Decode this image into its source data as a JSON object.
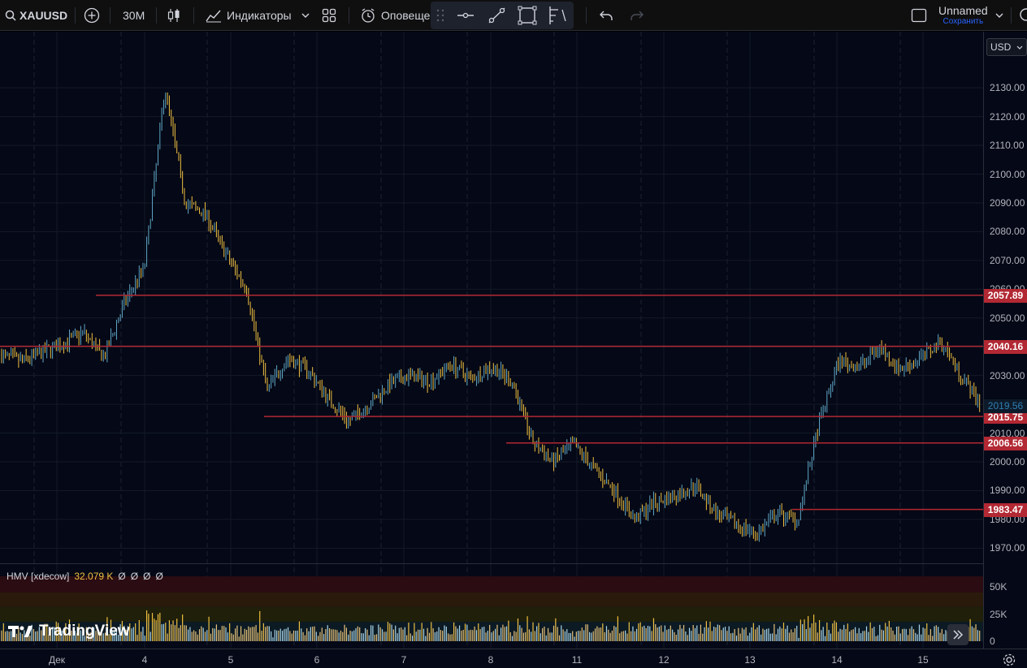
{
  "toolbar": {
    "symbol": "XAUUSD",
    "interval": "30M",
    "indicators_label": "Индикаторы",
    "alerts_label": "Оповещен",
    "layout_name": "Unnamed",
    "save_label": "Сохранить"
  },
  "currency_select": "USD",
  "indicator_legend": {
    "name": "HMV [xdecow]",
    "value": "32.079 K",
    "extra": [
      "Ø",
      "Ø",
      "Ø",
      "Ø"
    ]
  },
  "branding": "TradingView",
  "colors": {
    "background": "#050816",
    "level_line": "#b22833",
    "up_candle": "#5fa8c7",
    "down_candle": "#f0c040",
    "spike_volume": "#e03a3a",
    "current_price": "#2f7fb0"
  },
  "chart_data": {
    "type": "candlestick",
    "symbol": "XAUUSD",
    "interval": "30M",
    "price_axis": {
      "ylim": [
        1965,
        2140
      ],
      "ticks": [
        1970,
        1980,
        1990,
        2000,
        2010,
        2020,
        2030,
        2040,
        2050,
        2060,
        2070,
        2080,
        2090,
        2100,
        2110,
        2120,
        2130
      ],
      "tick_labels": [
        "1970.00",
        "1980.00",
        "1990.00",
        "2000.00",
        "2010.00",
        "2020.00",
        "2030.00",
        "2040.00",
        "2050.00",
        "2060.00",
        "2070.00",
        "2080.00",
        "2090.00",
        "2100.00",
        "2110.00",
        "2120.00",
        "2130.00"
      ]
    },
    "time_axis": {
      "labels": [
        "Дек",
        "4",
        "5",
        "6",
        "7",
        "8",
        "11",
        "12",
        "13",
        "14",
        "15"
      ]
    },
    "horizontal_levels": [
      {
        "price": 2057.89,
        "label": "2057.89"
      },
      {
        "price": 2040.16,
        "label": "2040.16"
      },
      {
        "price": 2015.75,
        "label": "2015.75"
      },
      {
        "price": 2006.56,
        "label": "2006.56"
      },
      {
        "price": 1983.47,
        "label": "1983.47"
      }
    ],
    "last_price": {
      "price": 2019.56,
      "label": "2019.56"
    },
    "price_path": [
      {
        "day": "Дек",
        "close": 2037
      },
      {
        "day": "Дек",
        "close": 2035
      },
      {
        "day": "Дек",
        "close": 2038
      },
      {
        "day": "Дек",
        "close": 2041
      },
      {
        "day": "Дек",
        "close": 2045
      },
      {
        "day": "Дек",
        "close": 2036
      },
      {
        "day": "Дек",
        "close": 2055
      },
      {
        "day": "4",
        "close": 2068
      },
      {
        "day": "4",
        "close": 2130
      },
      {
        "day": "4",
        "close": 2090
      },
      {
        "day": "4",
        "close": 2086
      },
      {
        "day": "4",
        "close": 2072
      },
      {
        "day": "4",
        "close": 2060
      },
      {
        "day": "4",
        "close": 2025
      },
      {
        "day": "5",
        "close": 2036
      },
      {
        "day": "5",
        "close": 2032
      },
      {
        "day": "5",
        "close": 2022
      },
      {
        "day": "5",
        "close": 2014
      },
      {
        "day": "6",
        "close": 2020
      },
      {
        "day": "6",
        "close": 2027
      },
      {
        "day": "6",
        "close": 2030
      },
      {
        "day": "7",
        "close": 2028
      },
      {
        "day": "7",
        "close": 2034
      },
      {
        "day": "7",
        "close": 2029
      },
      {
        "day": "8",
        "close": 2033
      },
      {
        "day": "8",
        "close": 2028
      },
      {
        "day": "8",
        "close": 2007
      },
      {
        "day": "11",
        "close": 2000
      },
      {
        "day": "11",
        "close": 2006
      },
      {
        "day": "11",
        "close": 1998
      },
      {
        "day": "11",
        "close": 1990
      },
      {
        "day": "12",
        "close": 1980
      },
      {
        "day": "12",
        "close": 1986
      },
      {
        "day": "12",
        "close": 1988
      },
      {
        "day": "12",
        "close": 1992
      },
      {
        "day": "12",
        "close": 1982
      },
      {
        "day": "13",
        "close": 1978
      },
      {
        "day": "13",
        "close": 1975
      },
      {
        "day": "13",
        "close": 1982
      },
      {
        "day": "13",
        "close": 1980
      },
      {
        "day": "13",
        "close": 2012
      },
      {
        "day": "14",
        "close": 2035
      },
      {
        "day": "14",
        "close": 2033
      },
      {
        "day": "14",
        "close": 2040
      },
      {
        "day": "14",
        "close": 2032
      },
      {
        "day": "15",
        "close": 2036
      },
      {
        "day": "15",
        "close": 2042
      },
      {
        "day": "15",
        "close": 2030
      },
      {
        "day": "15",
        "close": 2019.56
      }
    ],
    "volume_axis": {
      "ylim": [
        0,
        60000
      ],
      "ticks": [
        0,
        25000,
        50000
      ],
      "tick_labels": [
        "0",
        "25K",
        "50K"
      ]
    }
  }
}
